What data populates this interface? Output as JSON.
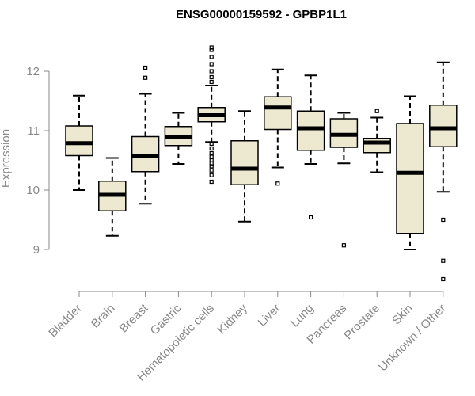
{
  "chart_data": {
    "type": "box",
    "title": "ENSG00000159592 - GPBP1L1",
    "xlabel": "",
    "ylabel": "Expression",
    "ylim": [
      8.4,
      12.6
    ],
    "yticks": [
      9,
      10,
      11,
      12
    ],
    "box_color": "#ede8d0",
    "categories": [
      "Bladder",
      "Brain",
      "Breast",
      "Gastric",
      "Hematopoietic cells",
      "Kidney",
      "Liver",
      "Lung",
      "Pancreas",
      "Prostate",
      "Skin",
      "Unknown / Other"
    ],
    "series": [
      {
        "name": "Bladder",
        "whisker_low": 10.0,
        "q1": 10.58,
        "median": 10.79,
        "q3": 11.08,
        "whisker_high": 11.59,
        "outliers": []
      },
      {
        "name": "Brain",
        "whisker_low": 9.23,
        "q1": 9.65,
        "median": 9.92,
        "q3": 10.15,
        "whisker_high": 10.54,
        "outliers": []
      },
      {
        "name": "Breast",
        "whisker_low": 9.77,
        "q1": 10.31,
        "median": 10.58,
        "q3": 10.9,
        "whisker_high": 11.62,
        "outliers": [
          11.89,
          12.06
        ]
      },
      {
        "name": "Gastric",
        "whisker_low": 10.44,
        "q1": 10.75,
        "median": 10.9,
        "q3": 11.07,
        "whisker_high": 11.3,
        "outliers": []
      },
      {
        "name": "Hematopoietic cells",
        "whisker_low": 10.81,
        "q1": 11.15,
        "median": 11.26,
        "q3": 11.39,
        "whisker_high": 11.76,
        "outliers": [
          10.14,
          10.25,
          10.33,
          10.4,
          10.45,
          10.5,
          10.56,
          10.62,
          10.7,
          10.78,
          11.82,
          11.9,
          12.0,
          12.12,
          12.24,
          12.36,
          12.4
        ]
      },
      {
        "name": "Kidney",
        "whisker_low": 9.47,
        "q1": 10.09,
        "median": 10.36,
        "q3": 10.83,
        "whisker_high": 11.33,
        "outliers": []
      },
      {
        "name": "Liver",
        "whisker_low": 10.38,
        "q1": 11.02,
        "median": 11.39,
        "q3": 11.57,
        "whisker_high": 12.03,
        "outliers": [
          10.11
        ]
      },
      {
        "name": "Lung",
        "whisker_low": 10.44,
        "q1": 10.67,
        "median": 11.04,
        "q3": 11.33,
        "whisker_high": 11.93,
        "outliers": [
          9.54
        ]
      },
      {
        "name": "Pancreas",
        "whisker_low": 10.45,
        "q1": 10.72,
        "median": 10.93,
        "q3": 11.2,
        "whisker_high": 11.3,
        "outliers": [
          9.07
        ]
      },
      {
        "name": "Prostate",
        "whisker_low": 10.3,
        "q1": 10.63,
        "median": 10.8,
        "q3": 10.87,
        "whisker_high": 11.22,
        "outliers": [
          11.33
        ]
      },
      {
        "name": "Skin",
        "whisker_low": 9.0,
        "q1": 9.27,
        "median": 10.29,
        "q3": 11.12,
        "whisker_high": 11.58,
        "outliers": []
      },
      {
        "name": "Unknown / Other",
        "whisker_low": 9.97,
        "q1": 10.73,
        "median": 11.04,
        "q3": 11.43,
        "whisker_high": 12.15,
        "outliers": [
          9.5,
          8.81,
          8.5
        ]
      }
    ]
  }
}
